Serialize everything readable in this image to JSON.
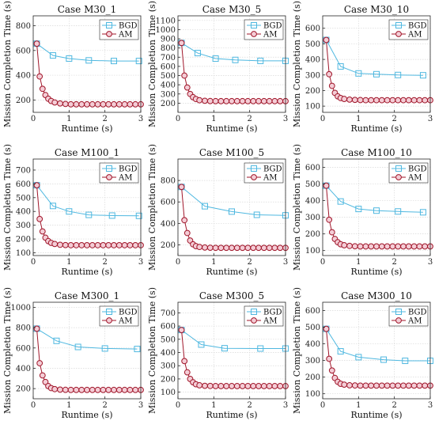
{
  "legend_labels": [
    "BGD",
    "AM"
  ],
  "colors": {
    "bgd": "#4fb8e0",
    "am": "#a0162a",
    "am_face": "#f4cdd6"
  },
  "chart_data": [
    {
      "type": "line",
      "title": "Case M30_1",
      "xlabel": "Runtime (s)",
      "ylabel": "Mission Completion Time (s)",
      "xlim": [
        0,
        3
      ],
      "ylim": [
        100,
        880
      ],
      "xticks": [
        0,
        1,
        2,
        3
      ],
      "yticks": [
        200,
        400,
        600,
        800
      ],
      "grid": true,
      "legend": "top-right",
      "series": [
        {
          "name": "BGD",
          "x": [
            0.1,
            0.55,
            1.0,
            1.55,
            2.25,
            2.95
          ],
          "y": [
            655,
            560,
            535,
            520,
            515,
            515
          ]
        },
        {
          "name": "AM",
          "x": [
            0.1,
            0.18,
            0.26,
            0.34,
            0.42,
            0.5,
            0.6,
            0.75,
            0.9,
            1.05,
            1.2,
            1.35,
            1.5,
            1.65,
            1.8,
            1.95,
            2.1,
            2.25,
            2.4,
            2.55,
            2.7,
            2.85,
            3.0
          ],
          "y": [
            655,
            390,
            290,
            240,
            210,
            192,
            180,
            172,
            168,
            165,
            165,
            165,
            165,
            165,
            165,
            165,
            165,
            165,
            165,
            165,
            165,
            165,
            165
          ]
        }
      ]
    },
    {
      "type": "line",
      "title": "Case M30_5",
      "xlabel": "Runtime (s)",
      "ylabel": "Mission Completion Time (s)",
      "xlim": [
        0,
        3
      ],
      "ylim": [
        100,
        1150
      ],
      "xticks": [
        0,
        1,
        2,
        3
      ],
      "yticks": [
        200,
        300,
        400,
        500,
        600,
        700,
        800,
        900,
        1000,
        1100
      ],
      "grid": true,
      "legend": "top-right",
      "series": [
        {
          "name": "BGD",
          "x": [
            0.1,
            0.55,
            1.05,
            1.6,
            2.3,
            3.0
          ],
          "y": [
            855,
            745,
            685,
            670,
            660,
            660
          ]
        },
        {
          "name": "AM",
          "x": [
            0.1,
            0.18,
            0.26,
            0.34,
            0.42,
            0.5,
            0.6,
            0.75,
            0.9,
            1.05,
            1.2,
            1.35,
            1.5,
            1.65,
            1.8,
            1.95,
            2.1,
            2.25,
            2.4,
            2.55,
            2.7,
            2.85,
            3.0
          ],
          "y": [
            855,
            500,
            370,
            300,
            265,
            245,
            232,
            226,
            223,
            222,
            222,
            222,
            222,
            222,
            222,
            222,
            222,
            222,
            222,
            222,
            222,
            222,
            222
          ]
        }
      ]
    },
    {
      "type": "line",
      "title": "Case M30_10",
      "xlabel": "Runtime (s)",
      "ylabel": "Mission Completion Time (s)",
      "xlim": [
        0,
        3
      ],
      "ylim": [
        60,
        680
      ],
      "xticks": [
        0,
        1,
        2,
        3
      ],
      "yticks": [
        100,
        200,
        300,
        400,
        500,
        600
      ],
      "grid": true,
      "legend": "top-right",
      "series": [
        {
          "name": "BGD",
          "x": [
            0.1,
            0.5,
            1.0,
            1.5,
            2.1,
            2.8
          ],
          "y": [
            525,
            355,
            310,
            305,
            300,
            298
          ]
        },
        {
          "name": "AM",
          "x": [
            0.1,
            0.18,
            0.26,
            0.34,
            0.42,
            0.5,
            0.6,
            0.75,
            0.9,
            1.05,
            1.2,
            1.35,
            1.5,
            1.65,
            1.8,
            1.95,
            2.1,
            2.25,
            2.4,
            2.55,
            2.7,
            2.85,
            3.0
          ],
          "y": [
            525,
            305,
            230,
            185,
            163,
            152,
            146,
            142,
            140,
            139,
            138,
            138,
            138,
            138,
            138,
            138,
            138,
            138,
            138,
            138,
            138,
            138,
            138
          ]
        }
      ]
    },
    {
      "type": "line",
      "title": "Case M100_1",
      "xlabel": "Runtime (s)",
      "ylabel": "Mission Completion Time (s)",
      "xlim": [
        0,
        3
      ],
      "ylim": [
        80,
        780
      ],
      "xticks": [
        0,
        1,
        2,
        3
      ],
      "yticks": [
        100,
        200,
        300,
        400,
        500,
        600,
        700
      ],
      "grid": true,
      "legend": "top-right",
      "series": [
        {
          "name": "BGD",
          "x": [
            0.1,
            0.55,
            1.0,
            1.55,
            2.2,
            2.95
          ],
          "y": [
            590,
            440,
            400,
            375,
            370,
            368
          ]
        },
        {
          "name": "AM",
          "x": [
            0.1,
            0.18,
            0.26,
            0.34,
            0.42,
            0.5,
            0.6,
            0.75,
            0.9,
            1.05,
            1.2,
            1.35,
            1.5,
            1.65,
            1.8,
            1.95,
            2.1,
            2.25,
            2.4,
            2.55,
            2.7,
            2.85,
            3.0
          ],
          "y": [
            590,
            345,
            255,
            210,
            185,
            172,
            164,
            158,
            156,
            155,
            155,
            155,
            155,
            155,
            155,
            155,
            155,
            155,
            155,
            155,
            155,
            155,
            155
          ]
        }
      ]
    },
    {
      "type": "line",
      "title": "Case M100_5",
      "xlabel": "Runtime (s)",
      "ylabel": "Mission Completion Time (s)",
      "xlim": [
        0,
        3
      ],
      "ylim": [
        100,
        1000
      ],
      "xticks": [
        0,
        1,
        2,
        3
      ],
      "yticks": [
        200,
        400,
        600,
        800
      ],
      "grid": true,
      "legend": "top-right",
      "series": [
        {
          "name": "BGD",
          "x": [
            0.1,
            0.75,
            1.5,
            2.2,
            3.0
          ],
          "y": [
            740,
            560,
            510,
            480,
            475
          ]
        },
        {
          "name": "AM",
          "x": [
            0.1,
            0.18,
            0.26,
            0.34,
            0.42,
            0.5,
            0.6,
            0.75,
            0.9,
            1.05,
            1.2,
            1.35,
            1.5,
            1.65,
            1.8,
            1.95,
            2.1,
            2.25,
            2.4,
            2.55,
            2.7,
            2.85,
            3.0
          ],
          "y": [
            740,
            430,
            310,
            240,
            205,
            188,
            180,
            175,
            173,
            172,
            172,
            172,
            172,
            172,
            172,
            172,
            172,
            172,
            172,
            172,
            172,
            172,
            172
          ]
        }
      ]
    },
    {
      "type": "line",
      "title": "Case M100_10",
      "xlabel": "Runtime (s)",
      "ylabel": "Mission Completion Time (s)",
      "xlim": [
        0,
        3
      ],
      "ylim": [
        70,
        650
      ],
      "xticks": [
        0,
        1,
        2,
        3
      ],
      "yticks": [
        100,
        200,
        300,
        400,
        500,
        600
      ],
      "grid": true,
      "legend": "top-right",
      "series": [
        {
          "name": "BGD",
          "x": [
            0.1,
            0.5,
            1.0,
            1.5,
            2.1,
            2.8
          ],
          "y": [
            490,
            395,
            350,
            340,
            335,
            330
          ]
        },
        {
          "name": "AM",
          "x": [
            0.1,
            0.18,
            0.26,
            0.34,
            0.42,
            0.5,
            0.6,
            0.75,
            0.9,
            1.05,
            1.2,
            1.35,
            1.5,
            1.65,
            1.8,
            1.95,
            2.1,
            2.25,
            2.4,
            2.55,
            2.7,
            2.85,
            3.0
          ],
          "y": [
            490,
            285,
            210,
            170,
            150,
            138,
            132,
            128,
            126,
            125,
            125,
            125,
            125,
            125,
            125,
            125,
            125,
            125,
            125,
            125,
            125,
            125,
            125
          ]
        }
      ]
    },
    {
      "type": "line",
      "title": "Case M300_1",
      "xlabel": "Runtime (s)",
      "ylabel": "Mission Completion Time (s)",
      "xlim": [
        0,
        3
      ],
      "ylim": [
        100,
        1050
      ],
      "xticks": [
        0,
        1,
        2,
        3
      ],
      "yticks": [
        200,
        400,
        600,
        800,
        1000
      ],
      "grid": true,
      "legend": "top-right",
      "series": [
        {
          "name": "BGD",
          "x": [
            0.1,
            0.65,
            1.25,
            2.0,
            2.9
          ],
          "y": [
            790,
            670,
            610,
            595,
            590
          ]
        },
        {
          "name": "AM",
          "x": [
            0.1,
            0.18,
            0.26,
            0.34,
            0.42,
            0.5,
            0.6,
            0.75,
            0.9,
            1.05,
            1.2,
            1.35,
            1.5,
            1.65,
            1.8,
            1.95,
            2.1,
            2.25,
            2.4,
            2.55,
            2.7,
            2.85,
            3.0
          ],
          "y": [
            790,
            450,
            330,
            265,
            225,
            205,
            195,
            190,
            188,
            187,
            187,
            187,
            187,
            187,
            187,
            187,
            187,
            187,
            187,
            187,
            187,
            187,
            187
          ]
        }
      ]
    },
    {
      "type": "line",
      "title": "Case M300_5",
      "xlabel": "Runtime (s)",
      "ylabel": "Mission Completion Time (s)",
      "xlim": [
        0,
        3
      ],
      "ylim": [
        50,
        780
      ],
      "xticks": [
        0,
        1,
        2,
        3
      ],
      "yticks": [
        100,
        200,
        300,
        400,
        500,
        600,
        700
      ],
      "grid": true,
      "legend": "top-right",
      "series": [
        {
          "name": "BGD",
          "x": [
            0.1,
            0.65,
            1.3,
            2.3,
            3.0
          ],
          "y": [
            570,
            460,
            432,
            430,
            430
          ]
        },
        {
          "name": "AM",
          "x": [
            0.1,
            0.18,
            0.26,
            0.34,
            0.42,
            0.5,
            0.6,
            0.75,
            0.9,
            1.05,
            1.2,
            1.35,
            1.5,
            1.65,
            1.8,
            1.95,
            2.1,
            2.25,
            2.4,
            2.55,
            2.7,
            2.85,
            3.0
          ],
          "y": [
            570,
            335,
            250,
            200,
            175,
            160,
            152,
            148,
            147,
            146,
            146,
            146,
            146,
            146,
            146,
            146,
            146,
            146,
            146,
            146,
            146,
            146,
            146
          ]
        }
      ]
    },
    {
      "type": "line",
      "title": "Case M300_10",
      "xlabel": "Runtime (s)",
      "ylabel": "Mission Completion Time (s)",
      "xlim": [
        0,
        3
      ],
      "ylim": [
        70,
        650
      ],
      "xticks": [
        0,
        1,
        2,
        3
      ],
      "yticks": [
        100,
        200,
        300,
        400,
        500,
        600
      ],
      "grid": true,
      "legend": "top-right",
      "series": [
        {
          "name": "BGD",
          "x": [
            0.1,
            0.5,
            1.0,
            1.7,
            2.3,
            3.0
          ],
          "y": [
            490,
            355,
            320,
            305,
            298,
            298
          ]
        },
        {
          "name": "AM",
          "x": [
            0.1,
            0.18,
            0.26,
            0.34,
            0.42,
            0.5,
            0.6,
            0.75,
            0.9,
            1.05,
            1.2,
            1.35,
            1.5,
            1.65,
            1.8,
            1.95,
            2.1,
            2.25,
            2.4,
            2.55,
            2.7,
            2.85,
            3.0
          ],
          "y": [
            490,
            310,
            240,
            195,
            172,
            160,
            155,
            151,
            150,
            149,
            149,
            149,
            149,
            149,
            149,
            149,
            149,
            149,
            149,
            149,
            149,
            149,
            149
          ]
        }
      ]
    }
  ]
}
